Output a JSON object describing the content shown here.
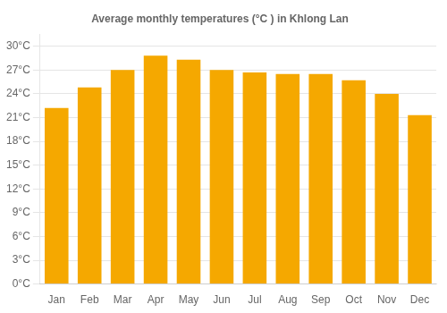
{
  "chart_data": {
    "type": "bar",
    "title": "Average monthly temperatures (°C ) in Khlong Lan",
    "categories": [
      "Jan",
      "Feb",
      "Mar",
      "Apr",
      "May",
      "Jun",
      "Jul",
      "Aug",
      "Sep",
      "Oct",
      "Nov",
      "Dec"
    ],
    "values": [
      22.2,
      24.8,
      27.0,
      28.8,
      28.3,
      27.0,
      26.7,
      26.5,
      26.5,
      25.7,
      24.0,
      21.3
    ],
    "color": "#F5A800",
    "ylim": [
      0,
      31.5
    ],
    "yticks": [
      {
        "value": 0,
        "label": "0°C"
      },
      {
        "value": 3,
        "label": "3°C"
      },
      {
        "value": 6,
        "label": "6°C"
      },
      {
        "value": 9,
        "label": "9°C"
      },
      {
        "value": 12,
        "label": "12°C"
      },
      {
        "value": 15,
        "label": "15°C"
      },
      {
        "value": 18,
        "label": "18°C"
      },
      {
        "value": 21,
        "label": "21°C"
      },
      {
        "value": 24,
        "label": "24°C"
      },
      {
        "value": 27,
        "label": "27°C"
      },
      {
        "value": 30,
        "label": "30°C"
      }
    ],
    "grid": true
  }
}
